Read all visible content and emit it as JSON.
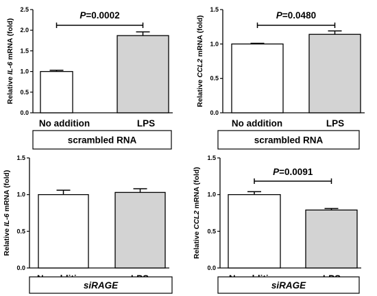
{
  "colors": {
    "treated_fill": "#d3d3d3",
    "control_fill": "#ffffff",
    "stroke": "#000000"
  },
  "chart_data": [
    {
      "type": "bar",
      "categories": [
        "No addition",
        "LPS"
      ],
      "values": [
        1.0,
        1.87
      ],
      "errors": [
        0.03,
        0.09
      ],
      "ylabel_pre": "Relative ",
      "ylabel_gene": "IL-6",
      "ylabel_post": " mRNA (fold)",
      "ylim": [
        0,
        2.5
      ],
      "yticks": [
        "0.0",
        "0.5",
        "1.0",
        "1.5",
        "2.0",
        "2.5"
      ],
      "significance": {
        "p_label": "P",
        "p_value": "=0.0002"
      },
      "condition": "scrambled RNA",
      "condition_italic": false
    },
    {
      "type": "bar",
      "categories": [
        "No addition",
        "LPS"
      ],
      "values": [
        1.0,
        1.14
      ],
      "errors": [
        0.01,
        0.05
      ],
      "ylabel_pre": "Relative ",
      "ylabel_gene": "CCL2",
      "ylabel_post": " mRNA (fold)",
      "ylim": [
        0,
        1.5
      ],
      "yticks": [
        "0.0",
        "0.5",
        "1.0",
        "1.5"
      ],
      "significance": {
        "p_label": "P",
        "p_value": "=0.0480"
      },
      "condition": "scrambled RNA",
      "condition_italic": false
    },
    {
      "type": "bar",
      "categories": [
        "No addition",
        "LPS"
      ],
      "values": [
        1.0,
        1.03
      ],
      "errors": [
        0.06,
        0.05
      ],
      "ylabel_pre": "Relative ",
      "ylabel_gene": "IL-6",
      "ylabel_post": " mRNA (fold)",
      "ylim": [
        0,
        1.5
      ],
      "yticks": [
        "0.0",
        "0.5",
        "1.0",
        "1.5"
      ],
      "significance": null,
      "condition": "siRAGE",
      "condition_italic": true
    },
    {
      "type": "bar",
      "categories": [
        "No addition",
        "LPS"
      ],
      "values": [
        1.0,
        0.79
      ],
      "errors": [
        0.04,
        0.02
      ],
      "ylabel_pre": "Relative ",
      "ylabel_gene": "CCL2",
      "ylabel_post": " mRNA (fold)",
      "ylim": [
        0,
        1.5
      ],
      "yticks": [
        "0.0",
        "0.5",
        "1.0",
        "1.5"
      ],
      "significance": {
        "p_label": "P",
        "p_value": "=0.0091"
      },
      "condition": "siRAGE",
      "condition_italic": true
    }
  ]
}
